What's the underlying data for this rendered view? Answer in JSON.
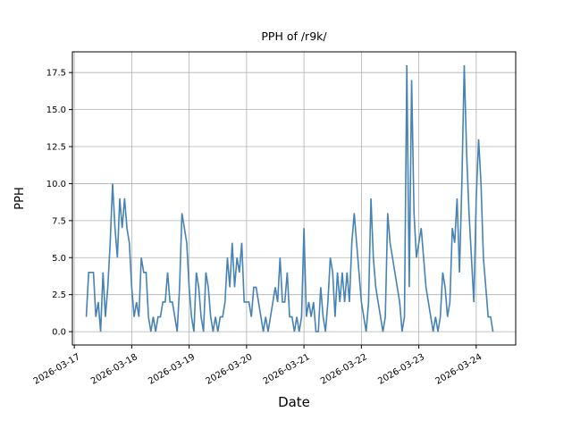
{
  "figure": {
    "background": "#ffffff"
  },
  "chart_data": {
    "type": "line",
    "title": "PPH of /r9k/",
    "xlabel": "Date",
    "ylabel": "PPH",
    "line_color": "#4682b4",
    "grid": true,
    "grid_color": "#b0b0b0",
    "spine_color": "#000000",
    "legend": "none",
    "x_tick_labels": [
      "2026-03-17",
      "2026-03-18",
      "2026-03-19",
      "2026-03-20",
      "2026-03-21",
      "2026-03-22",
      "2026-03-23",
      "2026-03-24"
    ],
    "x_tick_hours": [
      0,
      24,
      48,
      72,
      96,
      120,
      144,
      168
    ],
    "y_ticks": [
      0.0,
      2.5,
      5.0,
      7.5,
      10.0,
      12.5,
      15.0,
      17.5
    ],
    "ylim": [
      -0.9,
      18.9
    ],
    "xlim_hours": [
      -0.8,
      184.5
    ],
    "series": [
      {
        "name": "PPH",
        "start_hour": 5,
        "step_hours": 1,
        "values": [
          1,
          4,
          4,
          4,
          1,
          2,
          0,
          4,
          1,
          3,
          6,
          10,
          7,
          5,
          9,
          7,
          9,
          7,
          6,
          3,
          1,
          2,
          1,
          5,
          4,
          4,
          1,
          0,
          1,
          0,
          1,
          1,
          2,
          2,
          4,
          2,
          2,
          1,
          0,
          3,
          8,
          7,
          6,
          3,
          1,
          0,
          4,
          3,
          1,
          0,
          4,
          3,
          1,
          0,
          1,
          0,
          1,
          1,
          2,
          5,
          3,
          6,
          3,
          5,
          4,
          6,
          2,
          2,
          2,
          1,
          3,
          3,
          2,
          1,
          0,
          1,
          0,
          1,
          2,
          3,
          2,
          5,
          2,
          2,
          4,
          1,
          1,
          0,
          1,
          0,
          1,
          7,
          1,
          2,
          1,
          2,
          0,
          0,
          3,
          1,
          0,
          2,
          5,
          4,
          1,
          4,
          2,
          4,
          2,
          4,
          2,
          6,
          8,
          6,
          4,
          2,
          1,
          0,
          2,
          9,
          5,
          3,
          2,
          1,
          0,
          1,
          8,
          6,
          5,
          4,
          3,
          2,
          0,
          1,
          18,
          3,
          17,
          8,
          5,
          6,
          7,
          5,
          3,
          2,
          1,
          0,
          1,
          0,
          1,
          4,
          3,
          1,
          2,
          7,
          6,
          9,
          4,
          10,
          18,
          12,
          8,
          5,
          2,
          9,
          13,
          10,
          5,
          3,
          1,
          1,
          0
        ]
      }
    ]
  }
}
